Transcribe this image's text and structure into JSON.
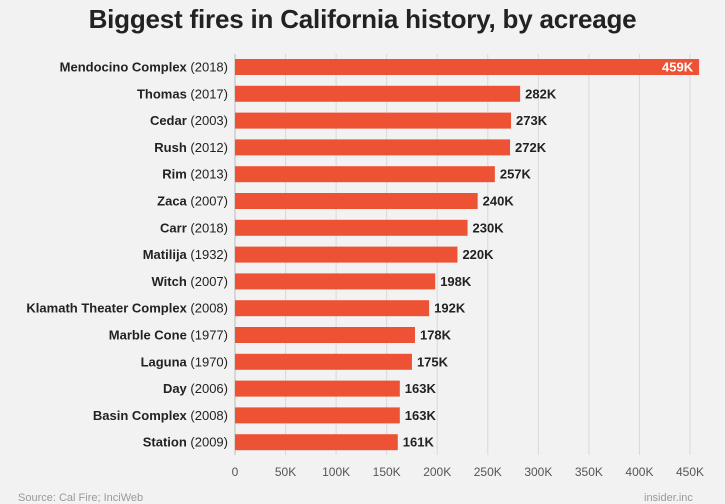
{
  "chart_data": {
    "type": "bar",
    "orientation": "horizontal",
    "title": "Biggest fires in California history, by acreage",
    "categories": [
      {
        "name": "Mendocino Complex",
        "year": "(2018)"
      },
      {
        "name": "Thomas",
        "year": "(2017)"
      },
      {
        "name": "Cedar",
        "year": "(2003)"
      },
      {
        "name": "Rush",
        "year": "(2012)"
      },
      {
        "name": "Rim",
        "year": "(2013)"
      },
      {
        "name": "Zaca",
        "year": "(2007)"
      },
      {
        "name": "Carr",
        "year": "(2018)"
      },
      {
        "name": "Matilija",
        "year": "(1932)"
      },
      {
        "name": "Witch",
        "year": "(2007)"
      },
      {
        "name": "Klamath Theater Complex",
        "year": "(2008)"
      },
      {
        "name": "Marble Cone",
        "year": "(1977)"
      },
      {
        "name": "Laguna",
        "year": "(1970)"
      },
      {
        "name": "Day",
        "year": "(2006)"
      },
      {
        "name": "Basin Complex",
        "year": "(2008)"
      },
      {
        "name": "Station",
        "year": "(2009)"
      }
    ],
    "values": [
      459,
      282,
      273,
      272,
      257,
      240,
      230,
      220,
      198,
      192,
      178,
      175,
      163,
      163,
      161
    ],
    "value_labels": [
      "459K",
      "282K",
      "273K",
      "272K",
      "257K",
      "240K",
      "230K",
      "220K",
      "198K",
      "192K",
      "178K",
      "175K",
      "163K",
      "163K",
      "161K"
    ],
    "xlim": [
      0,
      450
    ],
    "x_ticks": [
      0,
      50,
      100,
      150,
      200,
      250,
      300,
      350,
      400,
      450
    ],
    "x_tick_labels": [
      "0",
      "50K",
      "100K",
      "150K",
      "200K",
      "250K",
      "300K",
      "350K",
      "400K",
      "450K"
    ],
    "grid": true,
    "bar_color": "#ee5234"
  },
  "footer": {
    "source": "Source: Cal Fire; InciWeb",
    "brand": "insider.inc"
  }
}
